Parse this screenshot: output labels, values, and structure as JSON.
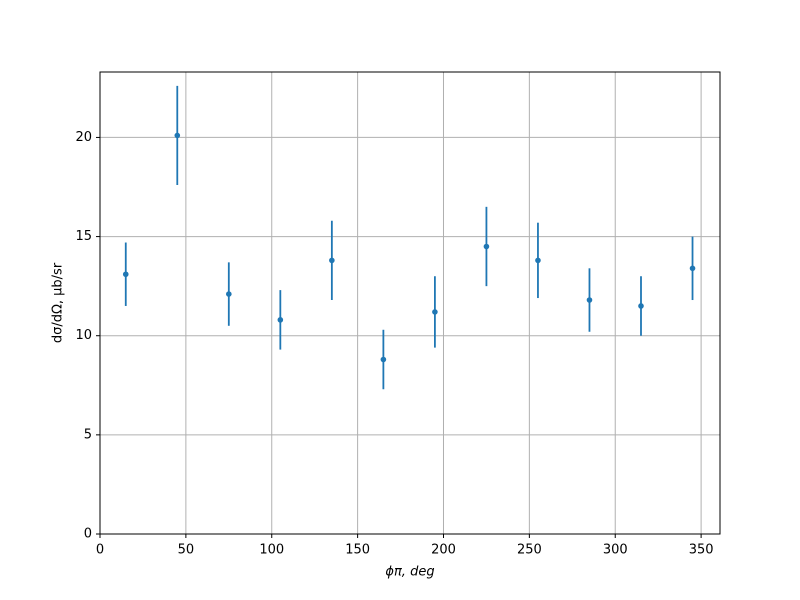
{
  "chart_data": {
    "type": "errorbar",
    "xlabel": "ϕπ, deg",
    "ylabel": "dσ/dΩ, μb/sr",
    "x": [
      15,
      45,
      75,
      105,
      135,
      165,
      195,
      225,
      255,
      285,
      315,
      345
    ],
    "values": [
      13.1,
      20.1,
      12.1,
      10.8,
      13.8,
      8.8,
      11.2,
      14.5,
      13.8,
      11.8,
      11.5,
      13.4
    ],
    "errors": [
      1.6,
      2.5,
      1.6,
      1.5,
      2.0,
      1.5,
      1.8,
      2.0,
      1.9,
      1.6,
      1.5,
      1.6
    ],
    "color": "#1f77b4",
    "xlim": [
      0,
      361
    ],
    "xticks": [
      0,
      50,
      100,
      150,
      200,
      250,
      300,
      350
    ],
    "ylim": [
      0,
      23.3
    ],
    "yticks": [
      0,
      5,
      10,
      15,
      20
    ],
    "grid": true
  }
}
